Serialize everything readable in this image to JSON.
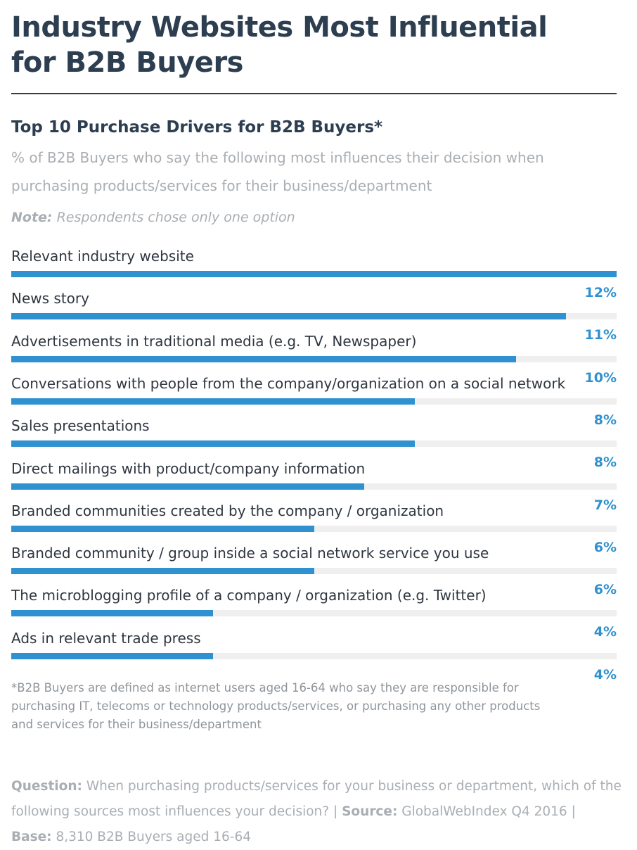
{
  "header": {
    "title_line1": "Industry Websites Most Influential",
    "title_line2": "for B2B Buyers",
    "subtitle": "Top 10 Purchase Drivers for B2B Buyers*",
    "description": "% of B2B Buyers who say the following most influences their decision when purchasing products/services for their business/department",
    "note_label": "Note:",
    "note_text": "Respondents chose only one option"
  },
  "chart_data": {
    "type": "bar",
    "orientation": "horizontal",
    "title": "Top 10 Purchase Drivers for B2B Buyers*",
    "unit": "%",
    "categories": [
      "Relevant industry website",
      "News story",
      "Advertisements in traditional media (e.g. TV, Newspaper)",
      "Conversations with people from the company/organization on a social network",
      "Sales presentations",
      "Direct mailings with product/company information",
      "Branded communities created by the company / organization",
      "Branded community / group inside a social network service you use",
      "The microblogging profile of a company / organization (e.g. Twitter)",
      "Ads in relevant trade press"
    ],
    "values": [
      12,
      11,
      10,
      8,
      8,
      7,
      6,
      6,
      4,
      4
    ],
    "value_labels": [
      "12%",
      "11%",
      "10%",
      "8%",
      "8%",
      "7%",
      "6%",
      "6%",
      "4%",
      "4%"
    ],
    "xlim": [
      0,
      12
    ]
  },
  "footnote": "*B2B Buyers are defined as internet users aged 16-64 who say they are responsible for purchasing IT, telecoms or technology products/services, or purchasing any other products and services for their business/department",
  "footer": {
    "question_label": "Question:",
    "question_text": "When purchasing products/services for your business or department, which of the following sources most influences your decision?",
    "separator": "|",
    "source_label": "Source:",
    "source_text": "GlobalWebIndex Q4 2016",
    "base_label": "Base:",
    "base_text": "8,310 B2B Buyers aged 16-64"
  },
  "colors": {
    "bar": "#2f91cf",
    "track": "#efefef",
    "title": "#2c3e50"
  }
}
